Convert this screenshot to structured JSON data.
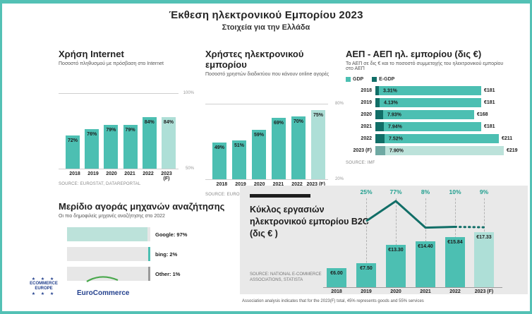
{
  "page": {
    "title": "Έκθεση ηλεκτρονικού Εμπορίου 2023",
    "subtitle": "Στοιχεία για την Ελλάδα"
  },
  "colors": {
    "teal": "#4cbfb2",
    "teal_forecast": "#aedfd7",
    "teal_dark": "#116e67",
    "growth_label": "#1f9e8e",
    "panel_gray": "#e9e9e9",
    "track_gray": "#e7e7e7",
    "google_fill": "#bce2da",
    "other_sliver": "#9a9a9a",
    "frame": "#53c1b5",
    "logo_blue": "#24418e"
  },
  "footnote": "Association analysis indicates that for the 2023(F) total, 45% represents goods and 55% services",
  "logos": {
    "star_row": "★ ★ ★",
    "ecommerce_europe_line1": "ECOMMERCE",
    "ecommerce_europe_line2": "EUROPE",
    "eurocommerce": "EuroCommerce"
  },
  "chart_data": [
    {
      "id": "internet_usage",
      "type": "bar",
      "title": "Χρήση Internet",
      "subtitle": "Ποσοστό πληθυσμού με πρόσβαση στο Internet",
      "source": "SOURCE: EUROSTAT, DATAREPORTAL",
      "categories": [
        "2018",
        "2019",
        "2020",
        "2021",
        "2022",
        "2023 (F)"
      ],
      "values": [
        72,
        76,
        79,
        79,
        84,
        84
      ],
      "labels": [
        "72%",
        "76%",
        "79%",
        "79%",
        "84%",
        "84%"
      ],
      "ylim": [
        50,
        100
      ],
      "axis_top": "100%",
      "axis_bottom": "50%",
      "forecast_last": true,
      "grid": "top-bottom-only",
      "legend": "none"
    },
    {
      "id": "ecommerce_users",
      "type": "bar",
      "title": "Χρήστες ηλεκτρονικού εμπορίου",
      "subtitle": "Ποσοστό χρηστών διαδικτύου που κάνουν online αγορές",
      "source": "SOURCE: EUROSTAT, STATISTA",
      "categories": [
        "2018",
        "2019",
        "2020",
        "2021",
        "2022",
        "2023 (F)"
      ],
      "values": [
        49,
        51,
        59,
        69,
        70,
        75
      ],
      "labels": [
        "49%",
        "51%",
        "59%",
        "69%",
        "70%",
        "75%"
      ],
      "ylim": [
        20,
        80
      ],
      "axis_top": "80%",
      "axis_bottom": "20%",
      "forecast_last": true,
      "grid": "top-bottom-only",
      "legend": "none"
    },
    {
      "id": "gdp_egdp",
      "type": "bar",
      "orientation": "horizontal",
      "title": "ΑΕΠ -  ΑΕΠ ηλ. εμπορίου (δις €)",
      "subtitle": "Το ΑΕΠ σε δις € και το ποσοστό συμμετοχής του ηλεκτρονικού εμπορίου στο ΑΕΠ",
      "source": "SOURCE: IMF",
      "legend": [
        "GDP",
        "E-GDP"
      ],
      "legend_position": "top-left",
      "xmax": 219,
      "rows": [
        {
          "year": "2018",
          "egdp_pct": 3.31,
          "egdp_label": "3.31%",
          "gdp": 181,
          "gdp_label": "€181",
          "forecast": false
        },
        {
          "year": "2019",
          "egdp_pct": 4.13,
          "egdp_label": "4.13%",
          "gdp": 181,
          "gdp_label": "€181",
          "forecast": false
        },
        {
          "year": "2020",
          "egdp_pct": 7.93,
          "egdp_label": "7.93%",
          "gdp": 168,
          "gdp_label": "€168",
          "forecast": false
        },
        {
          "year": "2021",
          "egdp_pct": 7.94,
          "egdp_label": "7.94%",
          "gdp": 181,
          "gdp_label": "€181",
          "forecast": false
        },
        {
          "year": "2022",
          "egdp_pct": 7.52,
          "egdp_label": "7.52%",
          "gdp": 211,
          "gdp_label": "€211",
          "forecast": false
        },
        {
          "year": "2023 (F)",
          "egdp_pct": 7.9,
          "egdp_label": "7.90%",
          "gdp": 219,
          "gdp_label": "€219",
          "forecast": true
        }
      ]
    },
    {
      "id": "search_share",
      "type": "bar",
      "orientation": "horizontal",
      "title": "Μερίδιο αγοράς μηχανών αναζήτησης",
      "subtitle": "Οι πιο δημοφιλείς μηχανές αναζήτησης στο 2022",
      "rows": [
        {
          "name": "Google",
          "pct": 97,
          "label": "Google: 97%",
          "fill": "google"
        },
        {
          "name": "bing",
          "pct": 2,
          "label": "bing: 2%",
          "fill": "teal-sliver"
        },
        {
          "name": "Other",
          "pct": 1,
          "label": "Other: 1%",
          "fill": "gray-sliver"
        }
      ]
    },
    {
      "id": "b2c_turnover",
      "type": "bar+line",
      "title_lines": [
        "Κύκλος εργασιών",
        "ηλεκτρονικού εμπορίου B2C",
        "(δις € )"
      ],
      "source_lines": [
        "SOURCE: NATIONAL E-COMMERCE",
        "ASSOCIATIONS, STATISTA"
      ],
      "categories": [
        "2018",
        "2019",
        "2020",
        "2021",
        "2022",
        "2023 (F)"
      ],
      "values": [
        6.0,
        7.5,
        13.3,
        14.4,
        15.84,
        17.33
      ],
      "labels": [
        "€6.00",
        "€7.50",
        "€13.30",
        "€14.40",
        "€15.84",
        "€17.33"
      ],
      "growth_categories": [
        "2019",
        "2020",
        "2021",
        "2022",
        "2023 (F)"
      ],
      "growth_values": [
        25,
        77,
        8,
        10,
        9
      ],
      "growth_labels": [
        "25%",
        "77%",
        "8%",
        "10%",
        "9%"
      ],
      "growth_line_dotted_last_segment": true,
      "forecast_last": true
    }
  ]
}
